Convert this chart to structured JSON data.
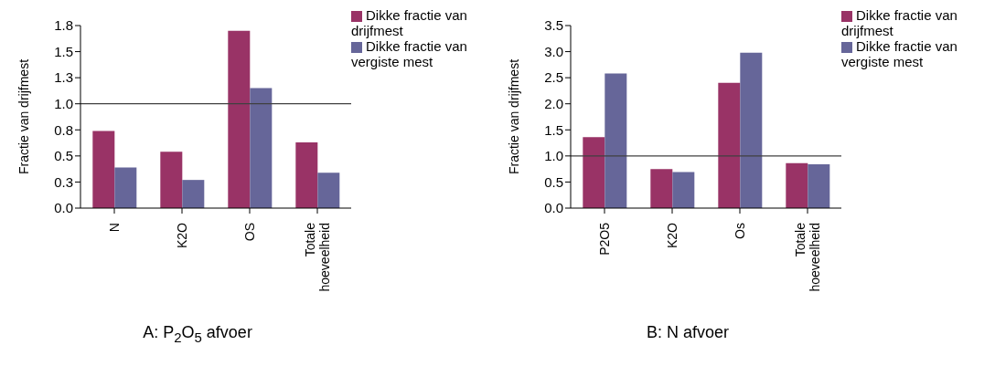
{
  "chart_data": [
    {
      "type": "bar",
      "title": "A: P$_{2}$O$_{5}$ afvoer",
      "ylabel": "Fractie van drijfmest",
      "categories": [
        "N",
        "K2O",
        "OS",
        "Totale hoeveelheid"
      ],
      "series": [
        {
          "name": "Dikke fractie van drijfmest",
          "color": "#993366",
          "values": [
            0.74,
            0.54,
            1.7,
            0.63
          ]
        },
        {
          "name": "Dikke fractie van vergiste mest",
          "color": "#666699",
          "values": [
            0.39,
            0.27,
            1.15,
            0.34
          ]
        }
      ],
      "ylim": [
        0,
        1.75
      ],
      "yticks": [
        {
          "value": 0,
          "label": "0.0"
        },
        {
          "value": 0.25,
          "label": "0.3"
        },
        0.5,
        {
          "value": 0.75,
          "label": "0.8"
        },
        {
          "value": 1,
          "label": "1.0"
        },
        {
          "value": 1.25,
          "label": "1.3"
        },
        1.5,
        {
          "value": 1.75,
          "label": "1.8"
        }
      ],
      "ref_lines": [
        {
          "axis": "y",
          "value": 1,
          "color": "#404040"
        }
      ],
      "grid": false,
      "legend": "top right"
    },
    {
      "type": "bar",
      "title": "B: N afvoer",
      "ylabel": "Fractie van drijfmest",
      "categories": [
        "P2O5",
        "K2O",
        "Os",
        "Totale hoeveelheid"
      ],
      "series": [
        {
          "name": "Dikke fractie van drijfmest",
          "color": "#993366",
          "values": [
            1.36,
            0.75,
            2.4,
            0.86
          ]
        },
        {
          "name": "Dikke fractie van vergiste mest",
          "color": "#666699",
          "values": [
            2.58,
            0.69,
            2.98,
            0.84
          ]
        }
      ],
      "ylim": [
        0,
        3.5
      ],
      "yticks": [
        {
          "value": 0,
          "label": "0.0"
        },
        {
          "value": 0.5,
          "label": "0.5"
        },
        {
          "value": 1,
          "label": "1.0"
        },
        {
          "value": 1.5,
          "label": "1.5"
        },
        {
          "value": 2,
          "label": "2.0"
        },
        {
          "value": 2.5,
          "label": "2.5"
        },
        {
          "value": 3,
          "label": "3.0"
        },
        {
          "value": 3.5,
          "label": "3.5"
        }
      ],
      "ref_lines": [
        {
          "axis": "y",
          "value": 1,
          "color": "#404040"
        }
      ],
      "grid": false,
      "legend": "top right"
    }
  ]
}
